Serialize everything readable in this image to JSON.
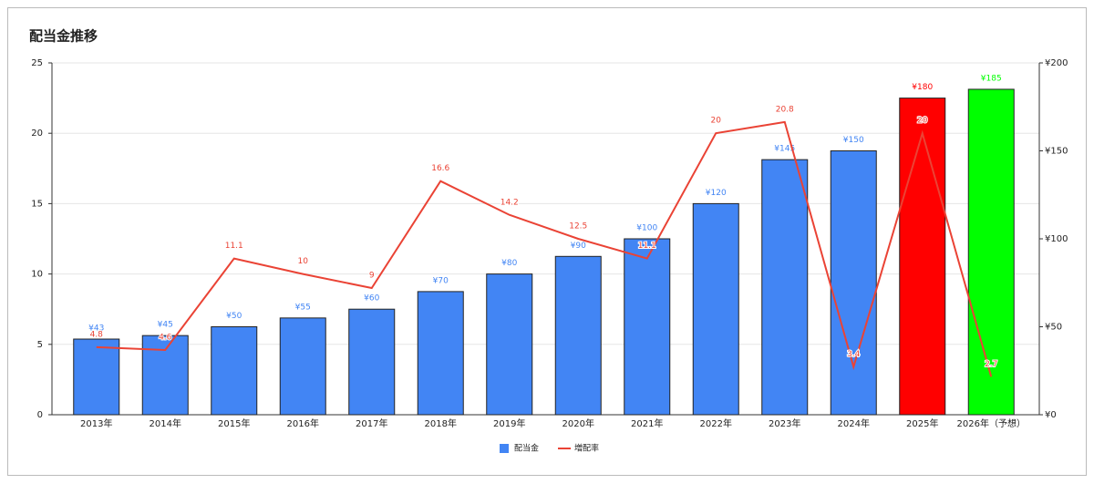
{
  "chart_data": {
    "type": "bar-line",
    "title": "配当金推移",
    "categories": [
      "2013年",
      "2014年",
      "2015年",
      "2016年",
      "2017年",
      "2018年",
      "2019年",
      "2020年",
      "2021年",
      "2022年",
      "2023年",
      "2024年",
      "2025年",
      "2026年（予想）"
    ],
    "series": [
      {
        "name": "配当金",
        "type": "bar",
        "axis": "y2",
        "color": "#4285f4",
        "colors": [
          "#4285f4",
          "#4285f4",
          "#4285f4",
          "#4285f4",
          "#4285f4",
          "#4285f4",
          "#4285f4",
          "#4285f4",
          "#4285f4",
          "#4285f4",
          "#4285f4",
          "#4285f4",
          "#ff0000",
          "#00ff00"
        ],
        "values": [
          43,
          45,
          50,
          55,
          60,
          70,
          80,
          90,
          100,
          120,
          145,
          150,
          180,
          185
        ],
        "value_labels": [
          "¥43",
          "¥45",
          "¥50",
          "¥55",
          "¥60",
          "¥70",
          "¥80",
          "¥90",
          "¥100",
          "¥120",
          "¥145",
          "¥150",
          "¥180",
          "¥185"
        ]
      },
      {
        "name": "増配率",
        "type": "line",
        "color": "#ea4335",
        "values": [
          4.8,
          4.6,
          11.1,
          10,
          9,
          16.6,
          14.2,
          12.5,
          11.1,
          20,
          20.8,
          3.4,
          20,
          2.7
        ]
      }
    ],
    "ylim": [
      0,
      25
    ],
    "yticks": [
      0,
      5,
      10,
      15,
      20,
      25
    ],
    "y2lim": [
      0,
      200
    ],
    "y2ticks": [
      {
        "value": 0,
        "label": "¥0"
      },
      {
        "value": 50,
        "label": "¥50"
      },
      {
        "value": 100,
        "label": "¥100"
      },
      {
        "value": 150,
        "label": "¥150"
      },
      {
        "value": 200,
        "label": "¥200"
      }
    ],
    "grid": true,
    "legend": "bottom"
  }
}
